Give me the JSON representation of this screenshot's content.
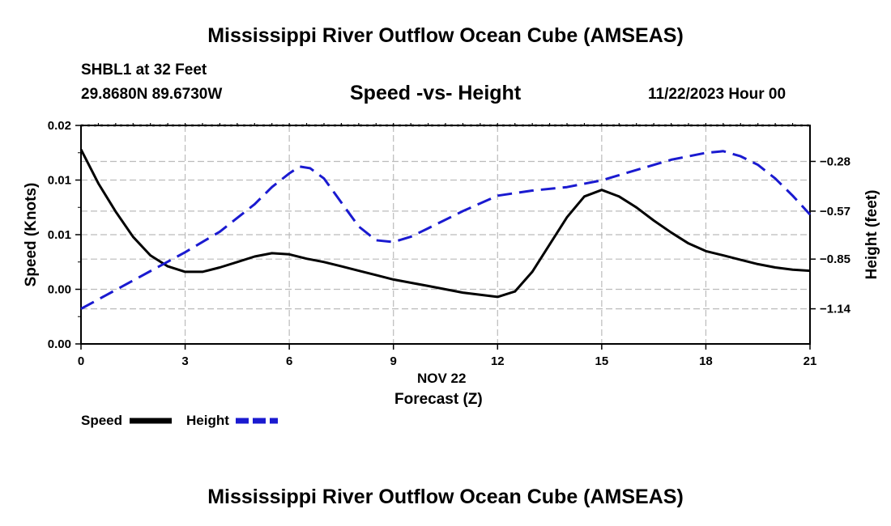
{
  "header": {
    "title": "Mississippi River Outflow Ocean Cube (AMSEAS)",
    "station": "SHBL1 at 32 Feet",
    "coords": "29.8680N  89.6730W",
    "datetime": "11/22/2023 Hour 00",
    "footer_title": "Mississippi River Outflow Ocean Cube (AMSEAS)"
  },
  "colors": {
    "speed": "#000000",
    "height": "#1a1ad0",
    "grid": "#bbbbbb"
  },
  "chart_data": {
    "type": "line",
    "title": "Speed -vs- Height",
    "xlabel_date": "NOV 22",
    "xlabel": "Forecast (Z)",
    "ylabel_left": "Speed (Knots)",
    "ylabel_right": "Height (feet)",
    "xlim": [
      0,
      21
    ],
    "x_ticks": [
      0,
      3,
      6,
      9,
      12,
      15,
      18,
      21
    ],
    "x_tick_labels": [
      "0",
      "3",
      "6",
      "9",
      "12",
      "15",
      "18",
      "21"
    ],
    "ylim_left": [
      0,
      0.02
    ],
    "y_left_ticks": [
      0,
      0.005,
      0.01,
      0.015,
      0.02
    ],
    "y_left_tick_labels": [
      "0.00",
      "0.00",
      "0.01",
      "0.01",
      "0.02"
    ],
    "ylim_right": [
      -1.345,
      -0.07
    ],
    "y_right_ticks": [
      -1.14,
      -0.85,
      -0.57,
      -0.28
    ],
    "y_right_tick_labels": [
      "−1.14",
      "−0.85",
      "−0.57",
      "−0.28"
    ],
    "grid": true,
    "legend": [
      {
        "label": "Speed",
        "series": "speed"
      },
      {
        "label": "Height",
        "series": "height"
      }
    ],
    "series": [
      {
        "name": "Speed",
        "axis": "left",
        "style": "solid",
        "x": [
          0,
          0.5,
          1,
          1.5,
          2,
          2.5,
          3,
          3.5,
          4,
          4.5,
          5,
          5.5,
          6,
          6.5,
          7,
          7.5,
          8,
          8.5,
          9,
          9.5,
          10,
          10.5,
          11,
          11.5,
          12,
          12.5,
          13,
          13.5,
          14,
          14.5,
          15,
          15.5,
          16,
          16.5,
          17,
          17.5,
          18,
          18.5,
          19,
          19.5,
          20,
          20.5,
          21
        ],
        "values": [
          0.0178,
          0.0147,
          0.0121,
          0.0098,
          0.0081,
          0.0071,
          0.0066,
          0.0066,
          0.007,
          0.0075,
          0.008,
          0.0083,
          0.0082,
          0.0078,
          0.0075,
          0.0071,
          0.0067,
          0.0063,
          0.0059,
          0.0056,
          0.0053,
          0.005,
          0.0047,
          0.0045,
          0.0043,
          0.0048,
          0.0066,
          0.0091,
          0.0116,
          0.0135,
          0.0141,
          0.0135,
          0.0125,
          0.0113,
          0.0102,
          0.0092,
          0.0085,
          0.0081,
          0.0077,
          0.0073,
          0.007,
          0.0068,
          0.0067
        ]
      },
      {
        "name": "Height",
        "axis": "right",
        "style": "dashed",
        "x": [
          0,
          1,
          2,
          3,
          4,
          5,
          5.5,
          6,
          6.3,
          6.6,
          7,
          7.5,
          8,
          8.5,
          9,
          9.5,
          10,
          11,
          12,
          13,
          14,
          15,
          16,
          17,
          18,
          18.5,
          19,
          19.5,
          20,
          20.5,
          21
        ],
        "values": [
          -1.14,
          -1.03,
          -0.92,
          -0.81,
          -0.69,
          -0.53,
          -0.43,
          -0.35,
          -0.31,
          -0.32,
          -0.38,
          -0.52,
          -0.66,
          -0.74,
          -0.75,
          -0.72,
          -0.67,
          -0.57,
          -0.48,
          -0.45,
          -0.43,
          -0.39,
          -0.33,
          -0.27,
          -0.23,
          -0.22,
          -0.25,
          -0.3,
          -0.38,
          -0.48,
          -0.59
        ]
      }
    ]
  }
}
